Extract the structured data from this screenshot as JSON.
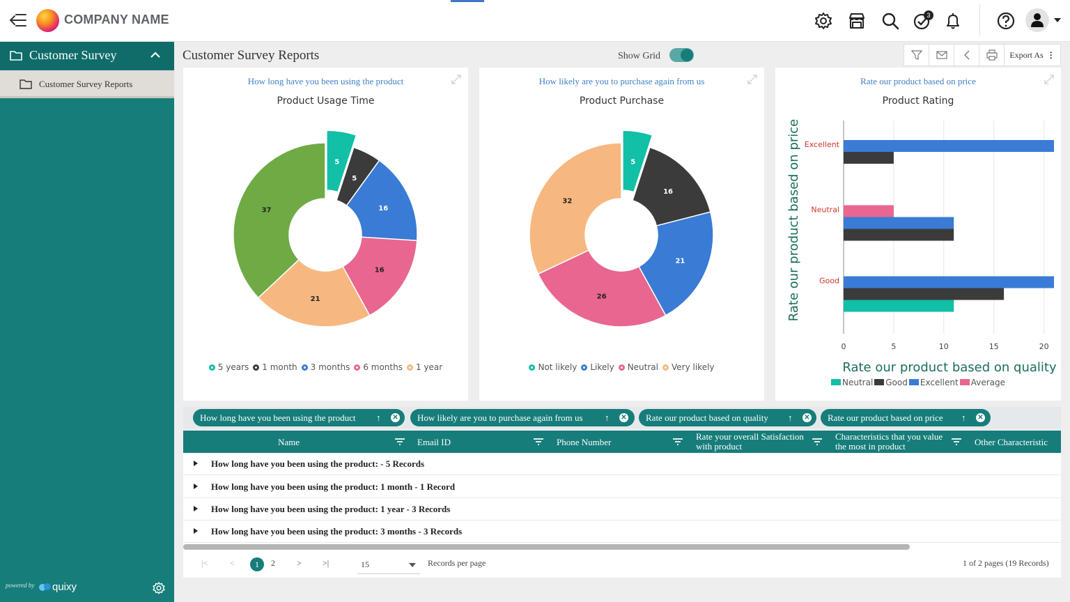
{
  "header": {
    "company": "COMPANY NAME",
    "notification_count": "3",
    "icons": [
      "menu-icon",
      "gear-icon",
      "store-icon",
      "search-icon",
      "task-check-icon",
      "bell-icon",
      "help-icon",
      "user-icon"
    ]
  },
  "sidebar": {
    "module": "Customer Survey",
    "items": [
      {
        "label": "Customer Survey Reports"
      }
    ],
    "powered_by": "powered by",
    "brand": "quixy"
  },
  "page": {
    "title": "Customer Survey Reports",
    "show_grid_label": "Show Grid",
    "show_grid_on": true,
    "export_label": "Export As"
  },
  "charts": [
    {
      "question": "How long have you been using the product",
      "title": "Product Usage Time"
    },
    {
      "question": "How likely are you to purchase again from us",
      "title": "Product Purchase"
    },
    {
      "question": "Rate our product based on price",
      "title": "Product Rating"
    }
  ],
  "chart_data": [
    {
      "type": "pie",
      "title": "Product Usage Time",
      "slices": [
        {
          "label": "5 years",
          "value": 5,
          "color": "#12bfa7",
          "exploded": true
        },
        {
          "label": "1 month",
          "value": 5,
          "color": "#3b3b3b"
        },
        {
          "label": "3 months",
          "value": 16,
          "color": "#3a7bd5"
        },
        {
          "label": "6 months",
          "value": 16,
          "color": "#e8668f"
        },
        {
          "label": "1 year",
          "value": 21,
          "color": "#f6b880"
        },
        {
          "label": "",
          "value": 37,
          "color": "#6faa45"
        }
      ],
      "legend": [
        "5 years",
        "1 month",
        "3 months",
        "6 months",
        "1 year"
      ]
    },
    {
      "type": "pie",
      "title": "Product Purchase",
      "slices": [
        {
          "label": "Not likely",
          "value": 5,
          "color": "#12bfa7",
          "exploded": true
        },
        {
          "label": "",
          "value": 16,
          "color": "#3b3b3b"
        },
        {
          "label": "Likely",
          "value": 21,
          "color": "#3a7bd5"
        },
        {
          "label": "Neutral",
          "value": 26,
          "color": "#e8668f"
        },
        {
          "label": "Very likely",
          "value": 32,
          "color": "#f6b880"
        }
      ],
      "legend": [
        "Not likely",
        "Likely",
        "Neutral",
        "Very likely"
      ]
    },
    {
      "type": "bar",
      "orientation": "horizontal",
      "title": "Product Rating",
      "categories": [
        "Excellent",
        "Neutral",
        "Good"
      ],
      "xlabel": "Rate our product based on quality",
      "ylabel": "Rate our product based on price",
      "xlim": [
        0,
        21
      ],
      "xticks": [
        0,
        5,
        10,
        15,
        20
      ],
      "series": [
        {
          "name": "Neutral",
          "color": "#12bfa7",
          "values": [
            null,
            null,
            11
          ]
        },
        {
          "name": "Good",
          "color": "#3b3b3b",
          "values": [
            5,
            11,
            16
          ]
        },
        {
          "name": "Excellent",
          "color": "#3a7bd5",
          "values": [
            21,
            11,
            21
          ]
        },
        {
          "name": "Average",
          "color": "#e8668f",
          "values": [
            null,
            5,
            null
          ]
        }
      ]
    }
  ],
  "group_chips": [
    "How long have you been using the product",
    "How likely are you to purchase again from us",
    "Rate our product based on quality",
    "Rate our product based on price"
  ],
  "table": {
    "columns": [
      "Name",
      "Email ID",
      "Phone Number",
      "Rate your overall Satisfaction with product",
      "Characteristics that you value the most in product",
      "Other Characteristic"
    ],
    "rows": [
      "How long have you been using the product: - 5 Records",
      "How long have you been using the product: 1 month - 1 Record",
      "How long have you been using the product: 1 year - 3 Records",
      "How long have you been using the product: 3 months - 3 Records"
    ]
  },
  "pager": {
    "first": "|<",
    "prev": "<",
    "pages": [
      "1",
      "2"
    ],
    "current": "1",
    "next": ">",
    "last": ">|",
    "per_page": "15",
    "per_page_label": "Records per page",
    "summary": "1 of 2 pages (19 Records)"
  }
}
